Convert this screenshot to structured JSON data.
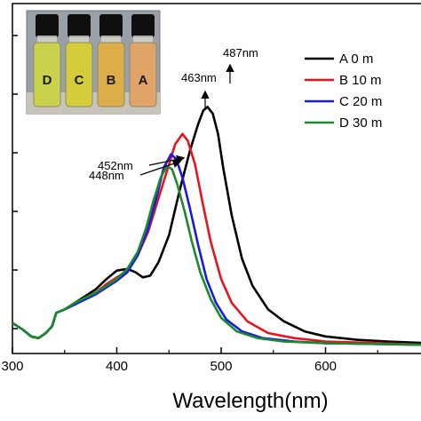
{
  "chart_data": {
    "type": "line",
    "xlabel": "Wavelength(nm)",
    "ylabel": "",
    "xlim": [
      300,
      700
    ],
    "ylim": [
      0,
      1
    ],
    "x_ticks": [
      "300",
      "400",
      "500",
      "600"
    ],
    "series": [
      {
        "name": "A 0 m",
        "color": "#000000",
        "points": [
          [
            300,
            0.08
          ],
          [
            310,
            0.06
          ],
          [
            318,
            0.04
          ],
          [
            325,
            0.035
          ],
          [
            332,
            0.05
          ],
          [
            338,
            0.07
          ],
          [
            342,
            0.11
          ],
          [
            350,
            0.12
          ],
          [
            360,
            0.14
          ],
          [
            370,
            0.16
          ],
          [
            380,
            0.18
          ],
          [
            390,
            0.21
          ],
          [
            400,
            0.235
          ],
          [
            410,
            0.24
          ],
          [
            418,
            0.23
          ],
          [
            425,
            0.215
          ],
          [
            432,
            0.22
          ],
          [
            440,
            0.26
          ],
          [
            450,
            0.34
          ],
          [
            460,
            0.47
          ],
          [
            470,
            0.59
          ],
          [
            478,
            0.67
          ],
          [
            483,
            0.71
          ],
          [
            487,
            0.72
          ],
          [
            492,
            0.7
          ],
          [
            497,
            0.64
          ],
          [
            502,
            0.54
          ],
          [
            510,
            0.4
          ],
          [
            520,
            0.27
          ],
          [
            530,
            0.19
          ],
          [
            545,
            0.12
          ],
          [
            560,
            0.085
          ],
          [
            580,
            0.055
          ],
          [
            600,
            0.04
          ],
          [
            630,
            0.03
          ],
          [
            660,
            0.025
          ],
          [
            700,
            0.02
          ]
        ]
      },
      {
        "name": "B 10 m",
        "color": "#e8141c",
        "points": [
          [
            300,
            0.08
          ],
          [
            310,
            0.06
          ],
          [
            318,
            0.04
          ],
          [
            325,
            0.035
          ],
          [
            332,
            0.05
          ],
          [
            338,
            0.07
          ],
          [
            342,
            0.11
          ],
          [
            350,
            0.12
          ],
          [
            360,
            0.135
          ],
          [
            370,
            0.155
          ],
          [
            380,
            0.17
          ],
          [
            390,
            0.195
          ],
          [
            400,
            0.215
          ],
          [
            410,
            0.235
          ],
          [
            420,
            0.28
          ],
          [
            430,
            0.35
          ],
          [
            440,
            0.45
          ],
          [
            450,
            0.55
          ],
          [
            456,
            0.61
          ],
          [
            463,
            0.64
          ],
          [
            468,
            0.62
          ],
          [
            475,
            0.55
          ],
          [
            482,
            0.44
          ],
          [
            490,
            0.32
          ],
          [
            500,
            0.21
          ],
          [
            510,
            0.14
          ],
          [
            525,
            0.085
          ],
          [
            545,
            0.05
          ],
          [
            570,
            0.035
          ],
          [
            600,
            0.025
          ],
          [
            650,
            0.02
          ],
          [
            700,
            0.015
          ]
        ]
      },
      {
        "name": "C 20 m",
        "color": "#1a1ae6",
        "points": [
          [
            300,
            0.08
          ],
          [
            310,
            0.06
          ],
          [
            318,
            0.04
          ],
          [
            325,
            0.035
          ],
          [
            332,
            0.05
          ],
          [
            338,
            0.07
          ],
          [
            342,
            0.11
          ],
          [
            350,
            0.12
          ],
          [
            360,
            0.135
          ],
          [
            370,
            0.15
          ],
          [
            380,
            0.165
          ],
          [
            390,
            0.185
          ],
          [
            400,
            0.205
          ],
          [
            410,
            0.23
          ],
          [
            420,
            0.28
          ],
          [
            430,
            0.36
          ],
          [
            438,
            0.45
          ],
          [
            445,
            0.54
          ],
          [
            452,
            0.58
          ],
          [
            457,
            0.565
          ],
          [
            463,
            0.51
          ],
          [
            470,
            0.42
          ],
          [
            478,
            0.31
          ],
          [
            486,
            0.21
          ],
          [
            495,
            0.14
          ],
          [
            505,
            0.09
          ],
          [
            520,
            0.055
          ],
          [
            540,
            0.035
          ],
          [
            570,
            0.025
          ],
          [
            600,
            0.02
          ],
          [
            700,
            0.015
          ]
        ]
      },
      {
        "name": "D 30 m",
        "color": "#1a8a2a",
        "points": [
          [
            300,
            0.08
          ],
          [
            310,
            0.06
          ],
          [
            318,
            0.04
          ],
          [
            325,
            0.035
          ],
          [
            332,
            0.05
          ],
          [
            338,
            0.07
          ],
          [
            342,
            0.11
          ],
          [
            350,
            0.12
          ],
          [
            360,
            0.14
          ],
          [
            370,
            0.155
          ],
          [
            380,
            0.17
          ],
          [
            390,
            0.19
          ],
          [
            400,
            0.21
          ],
          [
            410,
            0.24
          ],
          [
            420,
            0.29
          ],
          [
            428,
            0.36
          ],
          [
            435,
            0.44
          ],
          [
            442,
            0.51
          ],
          [
            448,
            0.545
          ],
          [
            453,
            0.535
          ],
          [
            458,
            0.49
          ],
          [
            465,
            0.41
          ],
          [
            472,
            0.32
          ],
          [
            480,
            0.23
          ],
          [
            490,
            0.15
          ],
          [
            500,
            0.095
          ],
          [
            515,
            0.055
          ],
          [
            535,
            0.035
          ],
          [
            560,
            0.025
          ],
          [
            600,
            0.02
          ],
          [
            700,
            0.015
          ]
        ]
      }
    ],
    "annotations": [
      {
        "text": "487nm",
        "x": 487
      },
      {
        "text": "463nm",
        "x": 463
      },
      {
        "text": "452nm",
        "x": 452
      },
      {
        "text": "448nm",
        "x": 448
      }
    ],
    "legend_position": "top-right",
    "grid": false
  },
  "inset": {
    "vial_labels": [
      "D",
      "C",
      "B",
      "A"
    ],
    "vial_colors": [
      "#c9d24a",
      "#d4cc3a",
      "#dcae48",
      "#e0a468"
    ]
  }
}
